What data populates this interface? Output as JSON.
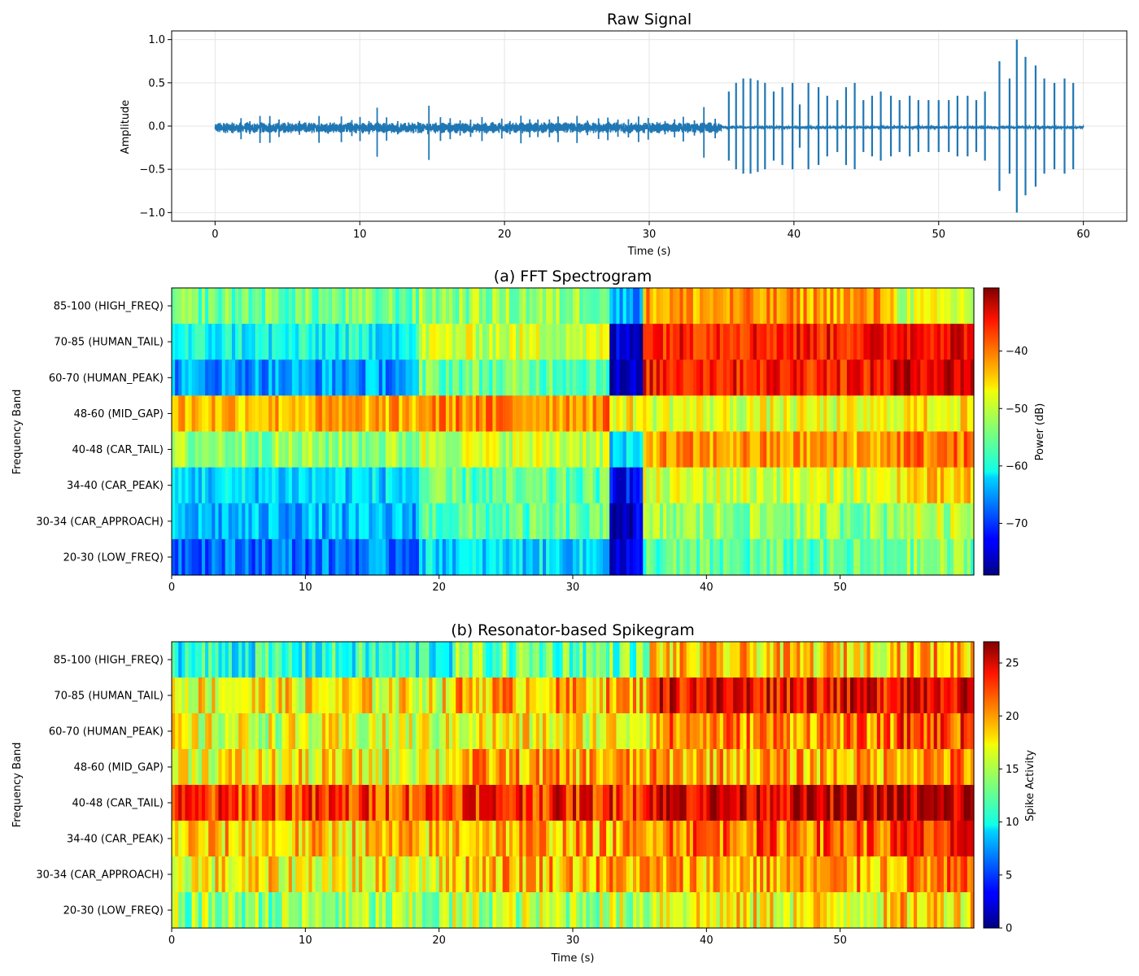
{
  "figure": {
    "colormap": "jet",
    "panels": [
      "raw_signal",
      "fft_spectrogram",
      "spikegram"
    ]
  },
  "chart_data": [
    {
      "id": "raw_signal",
      "type": "line",
      "title": "Raw Signal",
      "xlabel": "Time (s)",
      "ylabel": "Amplitude",
      "xlim": [
        -3,
        63
      ],
      "ylim": [
        -1.1,
        1.1
      ],
      "xticks": [
        "0",
        "10",
        "20",
        "30",
        "40",
        "50",
        "60"
      ],
      "xtick_values": [
        0,
        10,
        20,
        30,
        40,
        50,
        60
      ],
      "yticks": [
        "1.0",
        "0.5",
        "0.0",
        "−0.5",
        "−1.0"
      ],
      "ytick_values": [
        1.0,
        0.5,
        0.0,
        -0.5,
        -1.0
      ],
      "grid": true,
      "color": "#1f77b4",
      "duration_s": 60,
      "quiet_segment": {
        "t": [
          0,
          35
        ],
        "typical_amplitude": [
          0.05,
          0.2
        ],
        "peak_amplitude": 0.4
      },
      "loud_segment": {
        "t": [
          35,
          60
        ],
        "typical_amplitude": [
          0.3,
          0.6
        ],
        "peak_amplitude": 1.0
      },
      "bursts": [
        {
          "t": 35.5,
          "amp": 0.4
        },
        {
          "t": 36.0,
          "amp": 0.5
        },
        {
          "t": 36.5,
          "amp": 0.55
        },
        {
          "t": 37.0,
          "amp": 0.55
        },
        {
          "t": 37.5,
          "amp": 0.53
        },
        {
          "t": 38.0,
          "amp": 0.5
        },
        {
          "t": 38.6,
          "amp": 0.4
        },
        {
          "t": 39.2,
          "amp": 0.45
        },
        {
          "t": 39.9,
          "amp": 0.5
        },
        {
          "t": 40.4,
          "amp": 0.25
        },
        {
          "t": 41.0,
          "amp": 0.5
        },
        {
          "t": 41.7,
          "amp": 0.45
        },
        {
          "t": 42.3,
          "amp": 0.35
        },
        {
          "t": 43.0,
          "amp": 0.3
        },
        {
          "t": 43.6,
          "amp": 0.45
        },
        {
          "t": 44.2,
          "amp": 0.5
        },
        {
          "t": 44.8,
          "amp": 0.3
        },
        {
          "t": 45.4,
          "amp": 0.35
        },
        {
          "t": 46.0,
          "amp": 0.4
        },
        {
          "t": 46.7,
          "amp": 0.35
        },
        {
          "t": 47.3,
          "amp": 0.3
        },
        {
          "t": 48.0,
          "amp": 0.35
        },
        {
          "t": 48.6,
          "amp": 0.3
        },
        {
          "t": 49.3,
          "amp": 0.3
        },
        {
          "t": 50.0,
          "amp": 0.3
        },
        {
          "t": 50.7,
          "amp": 0.3
        },
        {
          "t": 51.3,
          "amp": 0.35
        },
        {
          "t": 52.0,
          "amp": 0.35
        },
        {
          "t": 52.6,
          "amp": 0.3
        },
        {
          "t": 53.2,
          "amp": 0.4
        },
        {
          "t": 54.2,
          "amp": 0.75
        },
        {
          "t": 54.9,
          "amp": 0.55
        },
        {
          "t": 55.4,
          "amp": 1.0
        },
        {
          "t": 56.0,
          "amp": 0.8
        },
        {
          "t": 56.7,
          "amp": 0.7
        },
        {
          "t": 57.3,
          "amp": 0.55
        },
        {
          "t": 58.0,
          "amp": 0.5
        },
        {
          "t": 58.7,
          "amp": 0.55
        },
        {
          "t": 59.3,
          "amp": 0.5
        }
      ]
    },
    {
      "id": "fft_spectrogram",
      "type": "heatmap",
      "title": "(a) FFT Spectrogram",
      "xlabel": "",
      "ylabel": "Frequency Band",
      "xlim": [
        0,
        60
      ],
      "xticks": [
        "0",
        "10",
        "20",
        "30",
        "40",
        "50"
      ],
      "xtick_values": [
        0,
        10,
        20,
        30,
        40,
        50
      ],
      "bands": [
        "85-100 (HIGH_FREQ)",
        "70-85 (HUMAN_TAIL)",
        "60-70 (HUMAN_PEAK)",
        "48-60 (MID_GAP)",
        "40-48 (CAR_TAIL)",
        "34-40 (CAR_PEAK)",
        "30-34 (CAR_APPROACH)",
        "20-30 (LOW_FREQ)"
      ],
      "colorbar": {
        "label": "Power (dB)",
        "vmin": -79,
        "vmax": -29,
        "ticks": [
          "−40",
          "−50",
          "−60",
          "−70"
        ],
        "tick_values": [
          -40,
          -50,
          -60,
          -70
        ]
      },
      "segments_t": [
        0,
        18.5,
        32.8,
        35.3,
        54,
        60
      ],
      "segment_levels_db": [
        [
          -55,
          -53,
          -64,
          -43,
          -50
        ],
        [
          -60,
          -50,
          -75,
          -36,
          -34
        ],
        [
          -65,
          -55,
          -77,
          -36,
          -33
        ],
        [
          -44,
          -42,
          -47,
          -49,
          -47
        ],
        [
          -53,
          -50,
          -63,
          -43,
          -41
        ],
        [
          -62,
          -56,
          -72,
          -50,
          -46
        ],
        [
          -64,
          -56,
          -75,
          -53,
          -51
        ],
        [
          -67,
          -62,
          -75,
          -56,
          -54
        ]
      ],
      "variation_db": 4.5
    },
    {
      "id": "spikegram",
      "type": "heatmap",
      "title": "(b) Resonator-based Spikegram",
      "xlabel": "Time (s)",
      "ylabel": "Frequency Band",
      "xlim": [
        0,
        60
      ],
      "xticks": [
        "0",
        "10",
        "20",
        "30",
        "40",
        "50"
      ],
      "xtick_values": [
        0,
        10,
        20,
        30,
        40,
        50
      ],
      "bands": [
        "85-100 (HIGH_FREQ)",
        "70-85 (HUMAN_TAIL)",
        "60-70 (HUMAN_PEAK)",
        "48-60 (MID_GAP)",
        "40-48 (CAR_TAIL)",
        "34-40 (CAR_PEAK)",
        "30-34 (CAR_APPROACH)",
        "20-30 (LOW_FREQ)"
      ],
      "colorbar": {
        "label": "Spike Activity",
        "vmin": 0,
        "vmax": 27,
        "ticks": [
          "25",
          "20",
          "15",
          "10",
          "5",
          "0"
        ],
        "tick_values": [
          25,
          20,
          15,
          10,
          5,
          0
        ]
      },
      "segments_t": [
        0,
        21,
        35.8,
        54,
        60
      ],
      "segment_levels": [
        [
          11,
          13,
          18,
          19
        ],
        [
          17,
          19,
          24,
          25
        ],
        [
          16,
          17,
          20,
          22
        ],
        [
          17,
          19,
          19,
          20
        ],
        [
          22,
          23,
          25,
          25
        ],
        [
          18,
          19,
          21,
          22
        ],
        [
          17,
          19,
          19,
          20
        ],
        [
          14,
          15,
          17,
          18
        ]
      ],
      "variation": 3.5
    }
  ]
}
